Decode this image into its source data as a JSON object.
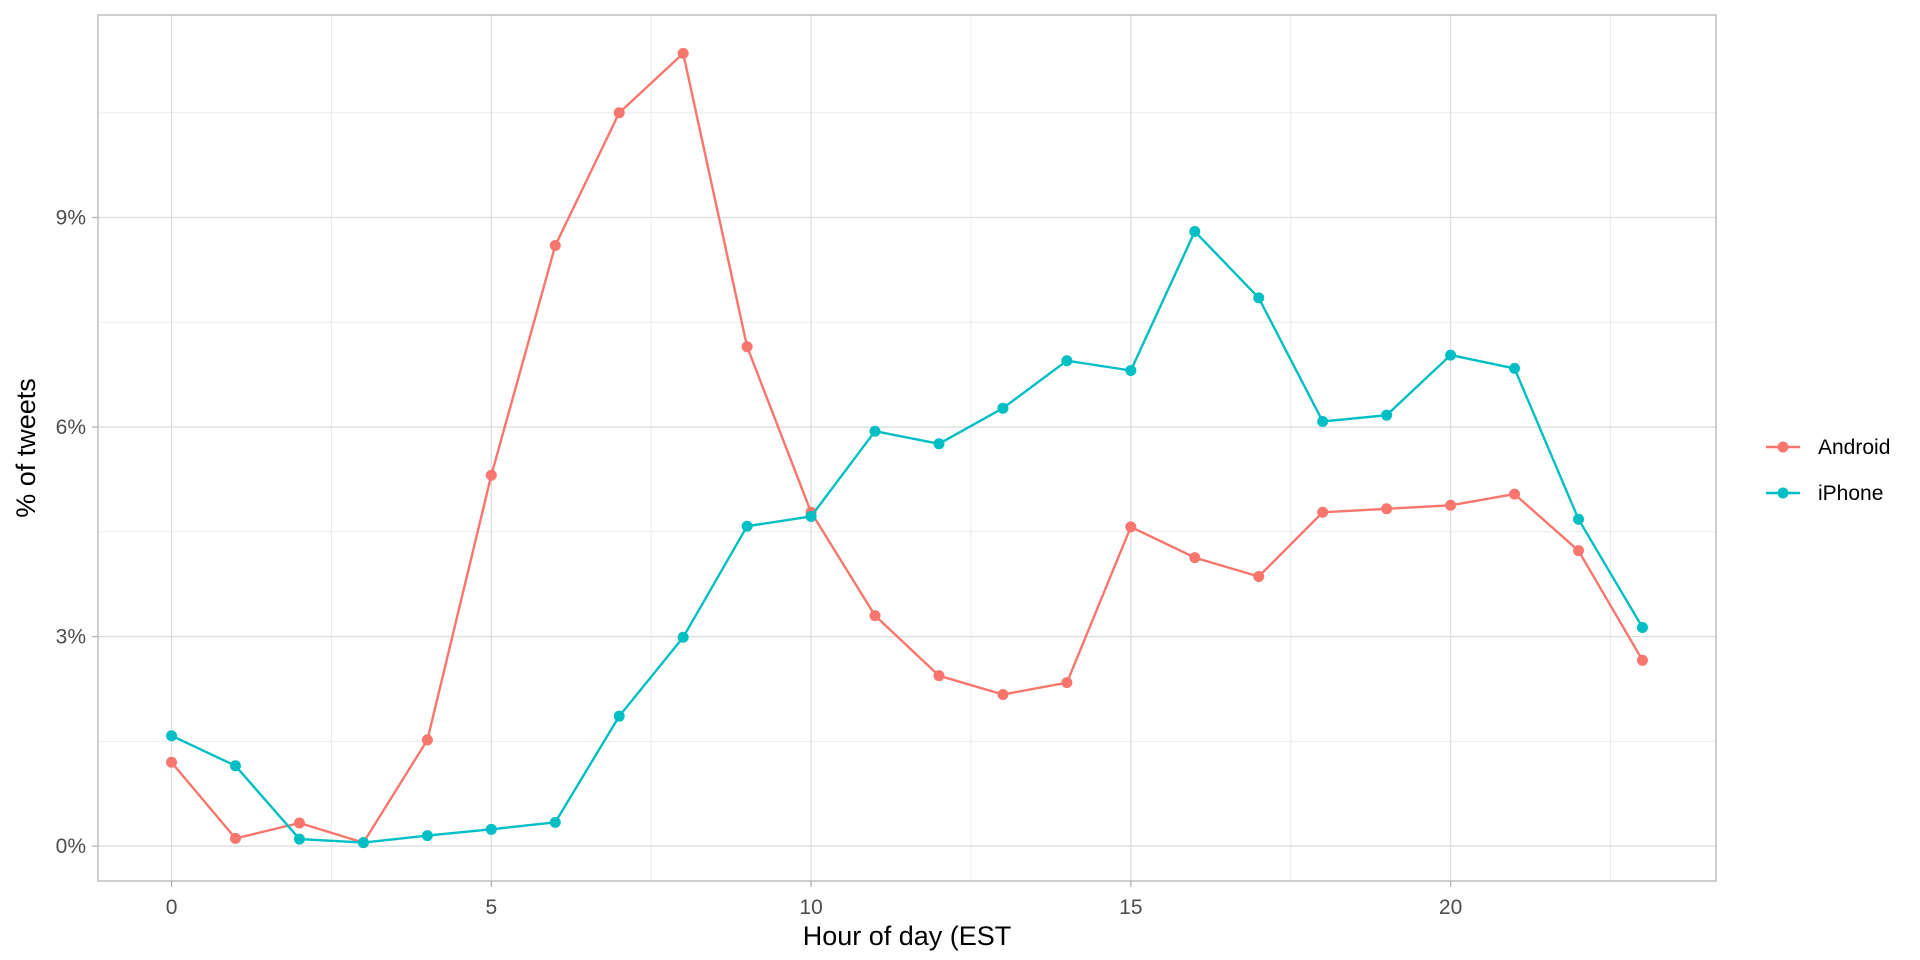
{
  "chart_data": {
    "type": "line",
    "title": "",
    "xlabel": "Hour of day (EST",
    "ylabel": "% of tweets",
    "x": [
      0,
      1,
      2,
      3,
      4,
      5,
      6,
      7,
      8,
      9,
      10,
      11,
      12,
      13,
      14,
      15,
      16,
      17,
      18,
      19,
      20,
      21,
      22,
      23
    ],
    "xlim": [
      -1.15,
      24.15
    ],
    "ylim": [
      -0.5,
      11.9
    ],
    "x_ticks": [
      0,
      5,
      10,
      15,
      20
    ],
    "x_tick_labels": [
      "0",
      "5",
      "10",
      "15",
      "20"
    ],
    "y_ticks": [
      0,
      3,
      6,
      9
    ],
    "y_tick_labels": [
      "0%",
      "3%",
      "6%",
      "9%"
    ],
    "grid": true,
    "legend_position": "right",
    "series": [
      {
        "name": "Android",
        "color": "#F8766D",
        "values": [
          1.2,
          0.11,
          0.33,
          0.05,
          1.52,
          5.31,
          8.6,
          10.5,
          11.35,
          7.15,
          4.78,
          3.3,
          2.44,
          2.17,
          2.34,
          4.57,
          4.13,
          3.86,
          4.78,
          4.83,
          4.88,
          5.04,
          4.23,
          2.66
        ]
      },
      {
        "name": "iPhone",
        "color": "#00BFC4",
        "values": [
          1.58,
          1.15,
          0.1,
          0.05,
          0.15,
          0.24,
          0.34,
          1.86,
          2.99,
          4.58,
          4.72,
          5.94,
          5.76,
          6.27,
          6.95,
          6.81,
          8.8,
          7.85,
          6.08,
          6.17,
          7.03,
          6.84,
          4.68,
          3.13
        ]
      }
    ]
  }
}
